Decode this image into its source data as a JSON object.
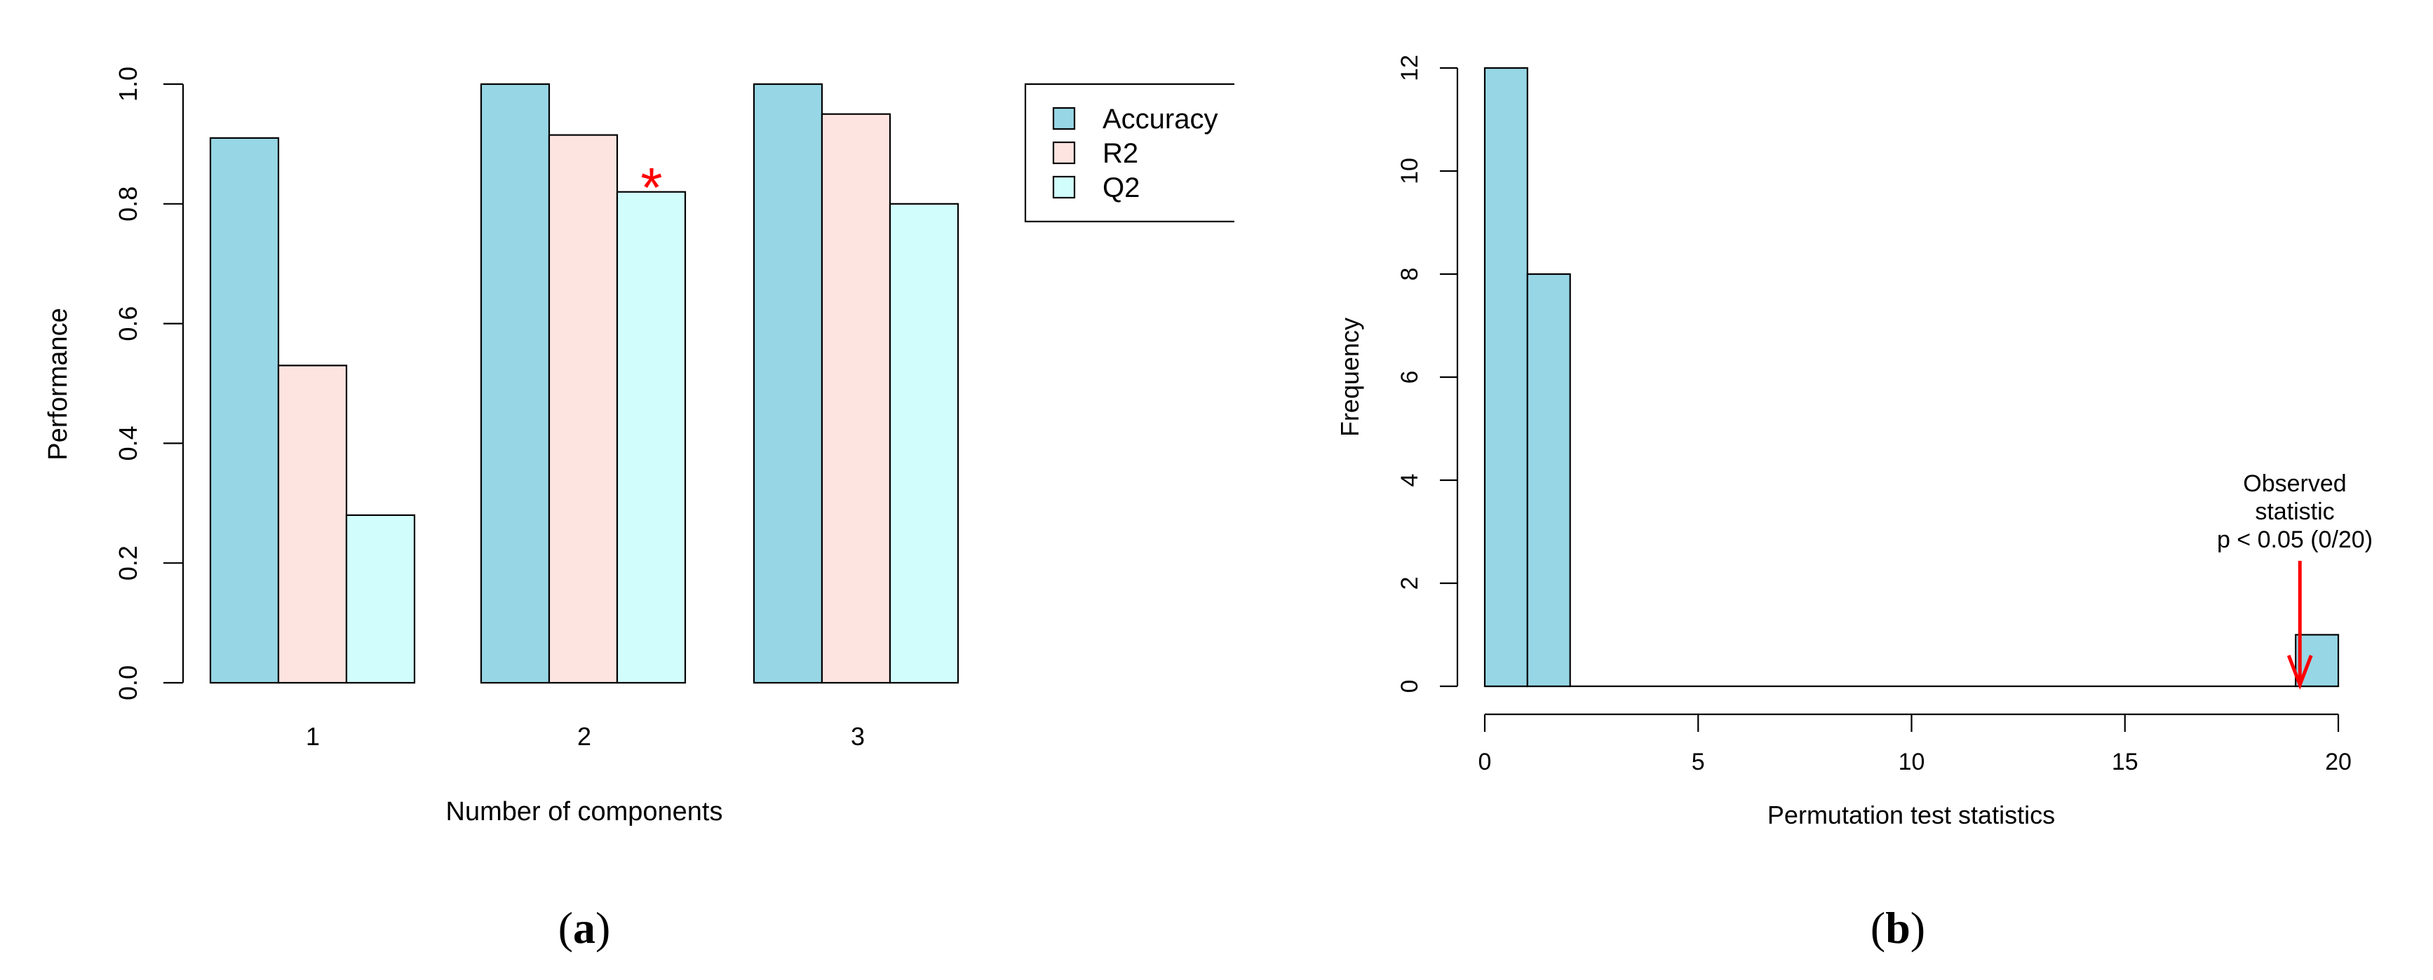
{
  "colors": {
    "accuracy": "#97d6e5",
    "r2": "#fde4e0",
    "q2": "#d2fdfd",
    "hist": "#97d6e5",
    "highlight": "#ff0000"
  },
  "chart_data": [
    {
      "type": "bar",
      "panel_label_parts": [
        "(",
        "a",
        ")"
      ],
      "xlabel": "Number of components",
      "ylabel": "Performance",
      "ylim": [
        0,
        1
      ],
      "yticks": [
        "0.0",
        "0.2",
        "0.4",
        "0.6",
        "0.8",
        "1.0"
      ],
      "categories": [
        "1",
        "2",
        "3"
      ],
      "series": [
        {
          "name": "Accuracy",
          "values": [
            0.91,
            1.0,
            1.0
          ]
        },
        {
          "name": "R2",
          "values": [
            0.53,
            0.915,
            0.95
          ]
        },
        {
          "name": "Q2",
          "values": [
            0.28,
            0.82,
            0.8
          ]
        }
      ],
      "legend": [
        "Accuracy",
        "R2",
        "Q2"
      ],
      "legend_position": "top-right",
      "annotation": {
        "text": "*",
        "category": "2",
        "series": "Q2"
      }
    },
    {
      "type": "bar",
      "panel_label_parts": [
        "(",
        "b",
        ")"
      ],
      "xlabel": "Permutation test statistics",
      "ylabel": "Frequency",
      "xlim": [
        0,
        20
      ],
      "ylim": [
        0,
        12
      ],
      "xticks": [
        "0",
        "5",
        "10",
        "15",
        "20"
      ],
      "yticks": [
        "0",
        "2",
        "4",
        "6",
        "8",
        "10",
        "12"
      ],
      "bins": [
        {
          "from": 0,
          "to": 1,
          "count": 12
        },
        {
          "from": 1,
          "to": 2,
          "count": 8
        },
        {
          "from": 19,
          "to": 20,
          "count": 1
        }
      ],
      "annotation": {
        "lines": [
          "Observed",
          "statistic",
          "p < 0.05 (0/20)"
        ],
        "x": 19.1
      }
    }
  ]
}
